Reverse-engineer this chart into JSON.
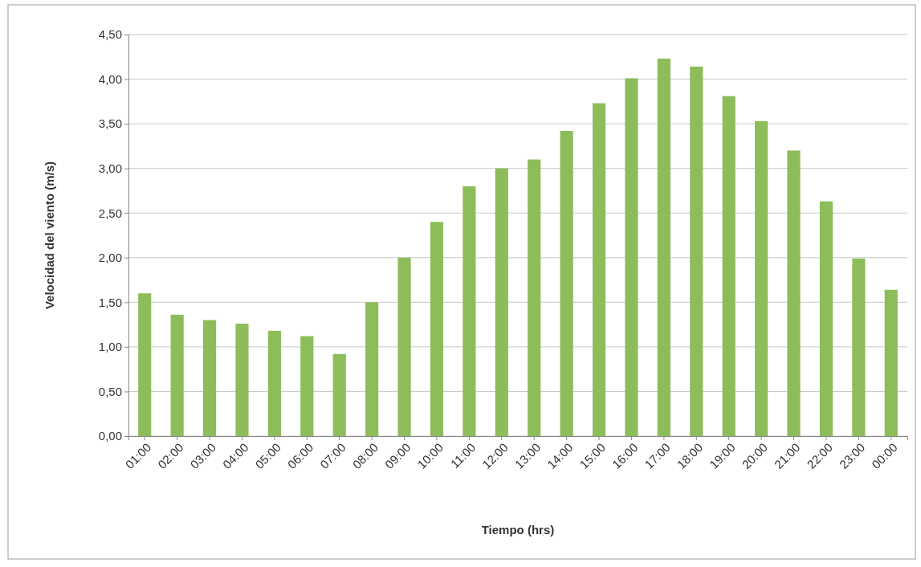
{
  "chart_data": {
    "type": "bar",
    "xlabel": "Tiempo (hrs)",
    "ylabel": "Velocidad del viento (m/s)",
    "categories": [
      "01:00",
      "02:00",
      "03:00",
      "04:00",
      "05:00",
      "06:00",
      "07:00",
      "08:00",
      "09:00",
      "10:00",
      "11:00",
      "12:00",
      "13:00",
      "14:00",
      "15:00",
      "16:00",
      "17:00",
      "18:00",
      "19:00",
      "20:00",
      "21:00",
      "22:00",
      "23:00",
      "00:00"
    ],
    "values": [
      1.6,
      1.36,
      1.3,
      1.26,
      1.18,
      1.12,
      0.92,
      1.5,
      2.0,
      2.4,
      2.8,
      3.0,
      3.1,
      3.42,
      3.73,
      4.01,
      4.23,
      4.14,
      3.81,
      3.53,
      3.2,
      2.63,
      1.99,
      1.64
    ],
    "color": "#8cbd5a",
    "ylim": [
      0,
      4.5
    ],
    "yticks": [
      {
        "value": 0,
        "label": "0,00"
      },
      {
        "value": 0.5,
        "label": "0,50"
      },
      {
        "value": 1,
        "label": "1,00"
      },
      {
        "value": 1.5,
        "label": "1,50"
      },
      {
        "value": 2,
        "label": "2,00"
      },
      {
        "value": 2.5,
        "label": "2,50"
      },
      {
        "value": 3,
        "label": "3,00"
      },
      {
        "value": 3.5,
        "label": "3,50"
      },
      {
        "value": 4,
        "label": "4,00"
      },
      {
        "value": 4.5,
        "label": "4,50"
      }
    ],
    "grid": "y"
  }
}
